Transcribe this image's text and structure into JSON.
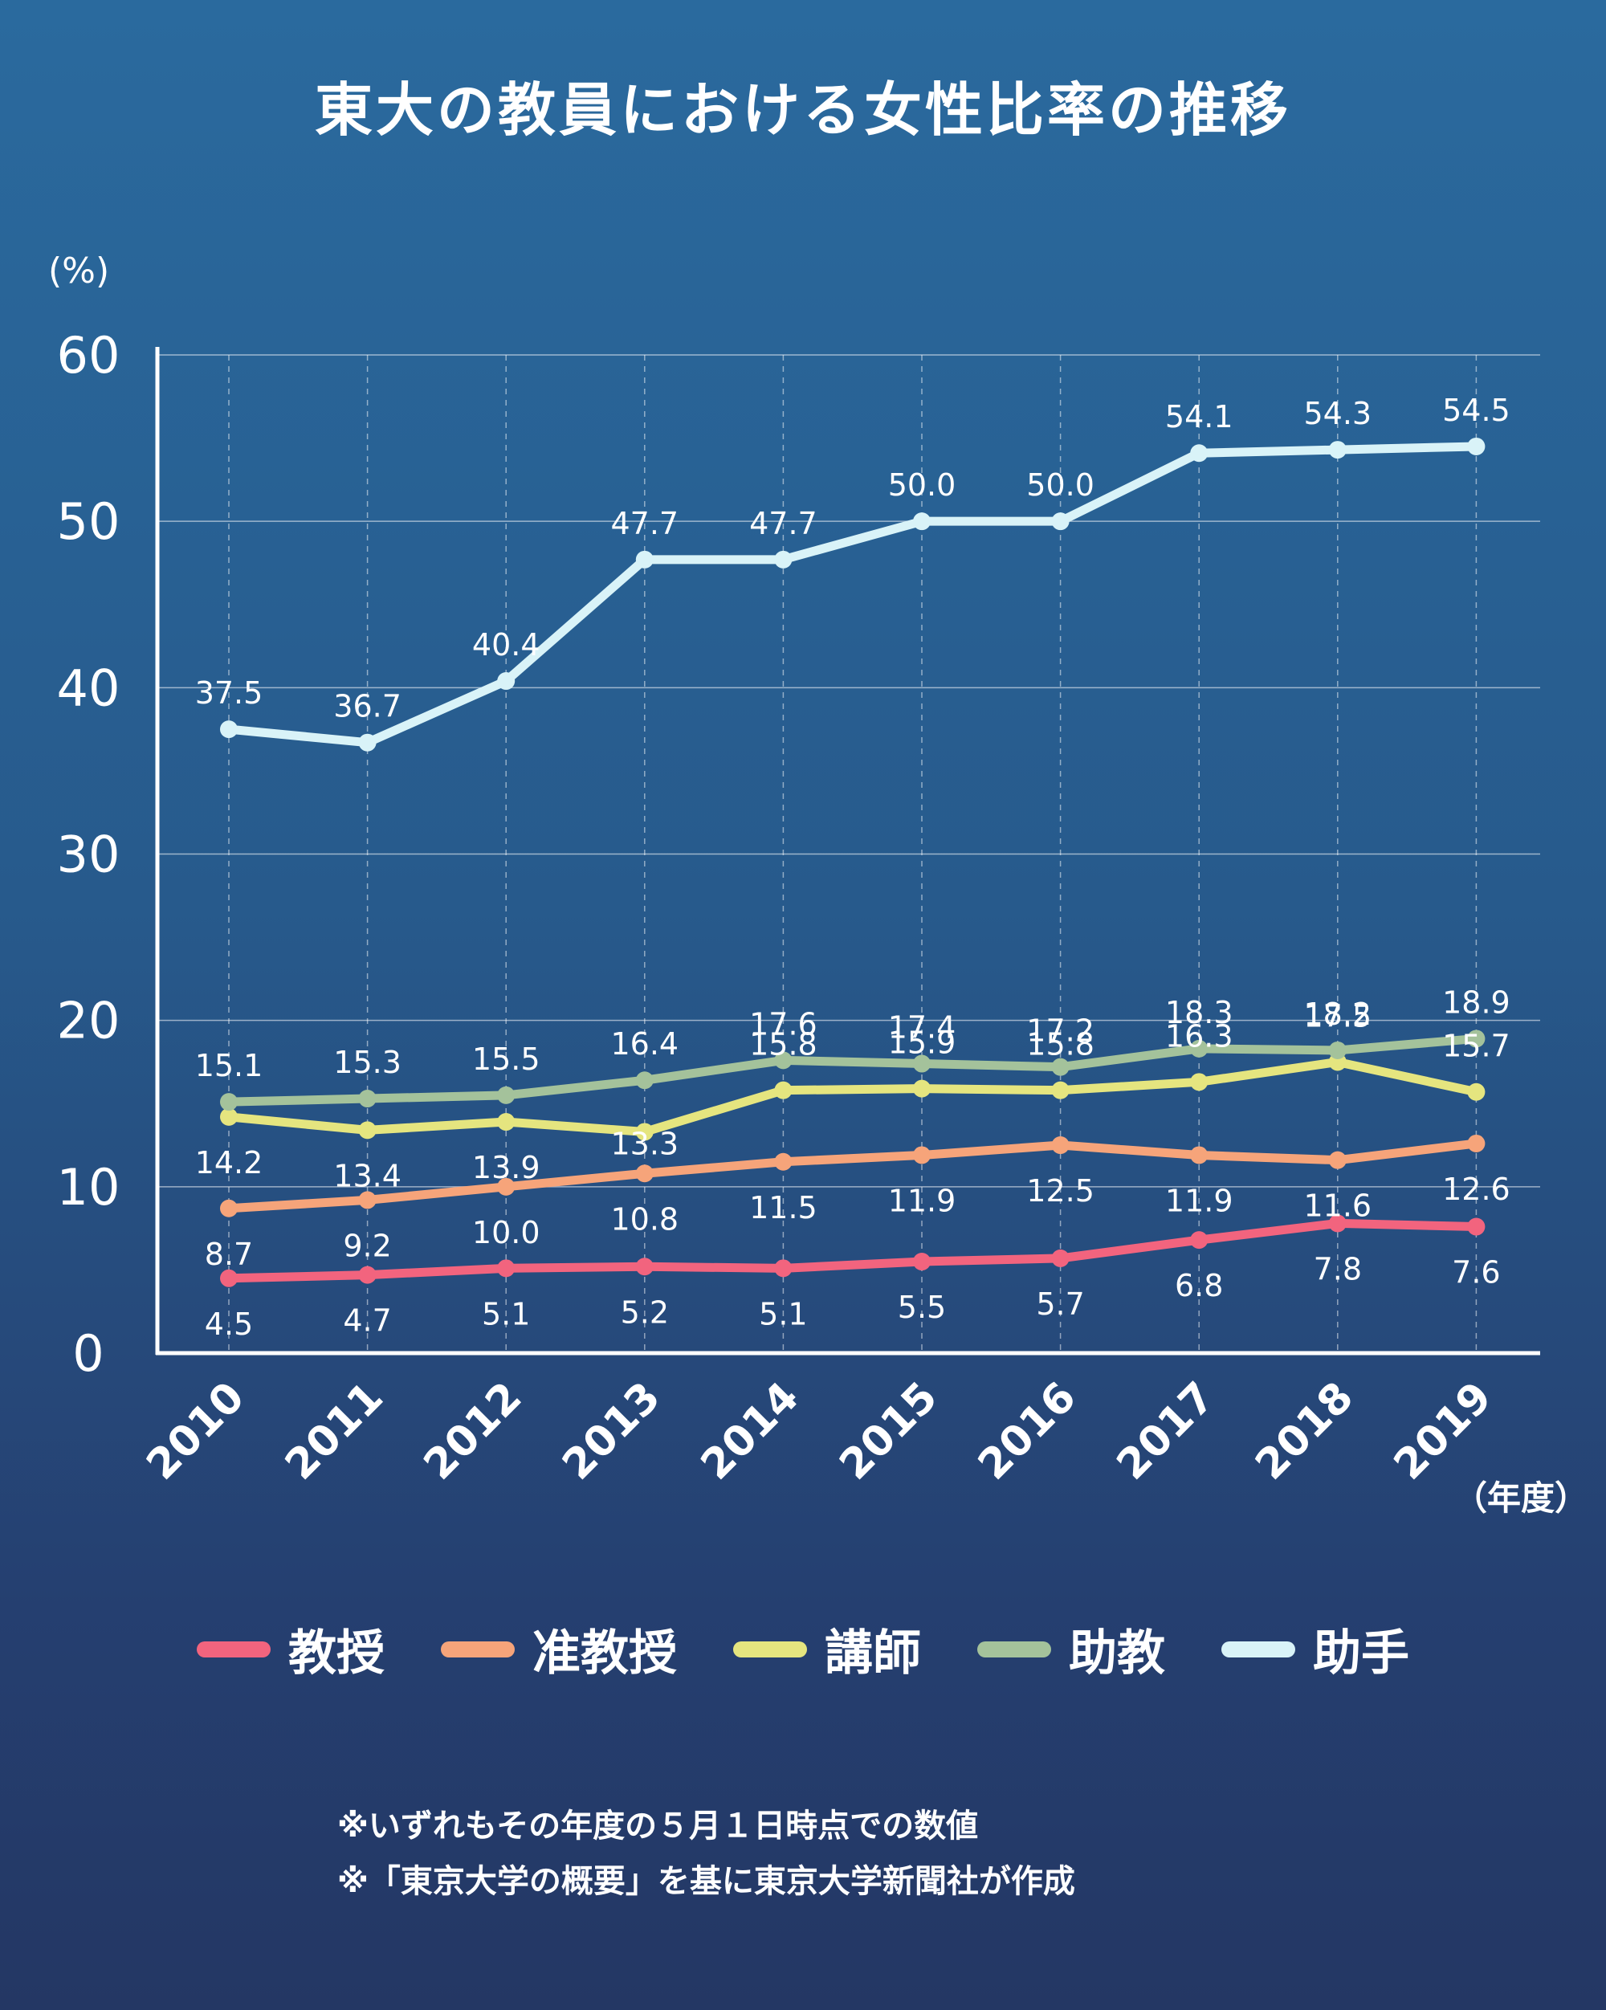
{
  "title": "東大の教員における女性比率の推移",
  "notes": [
    "※いずれもその年度の５月１日時点での数値",
    "※「東京大学の概要」を基に東京大学新聞社が作成"
  ],
  "chart_data": {
    "type": "line",
    "title": "東大の教員における女性比率の推移",
    "ylabel": "(%)",
    "xlabel": "（年度）",
    "ylim": [
      0,
      60
    ],
    "yticks": [
      "0",
      "10",
      "20",
      "30",
      "40",
      "50",
      "60"
    ],
    "grid": true,
    "legend_position": "bottom",
    "categories": [
      "2010",
      "2011",
      "2012",
      "2013",
      "2014",
      "2015",
      "2016",
      "2017",
      "2018",
      "2019"
    ],
    "series": [
      {
        "name": "教授",
        "color": "#f2647e",
        "values": [
          4.5,
          4.7,
          5.1,
          5.2,
          5.1,
          5.5,
          5.7,
          6.8,
          7.8,
          7.6
        ],
        "labels": [
          "4.5",
          "4.7",
          "5.1",
          "5.2",
          "5.1",
          "5.5",
          "5.7",
          "6.8",
          "7.8",
          "7.6"
        ]
      },
      {
        "name": "准教授",
        "color": "#f6a47a",
        "values": [
          8.7,
          9.2,
          10.0,
          10.8,
          11.5,
          11.9,
          12.5,
          11.9,
          11.6,
          12.6
        ],
        "labels": [
          "8.7",
          "9.2",
          "10.0",
          "10.8",
          "11.5",
          "11.9",
          "12.5",
          "11.9",
          "11.6",
          "12.6"
        ]
      },
      {
        "name": "講師",
        "color": "#e5e57f",
        "values": [
          14.2,
          13.4,
          13.9,
          13.3,
          15.8,
          15.9,
          15.8,
          16.3,
          17.5,
          15.7
        ],
        "labels": [
          "14.2",
          "13.4",
          "13.9",
          "13.3",
          "15.8",
          "15.9",
          "15.8",
          "16.3",
          "17.5",
          "15.7"
        ]
      },
      {
        "name": "助教",
        "color": "#a4c29b",
        "values": [
          15.1,
          15.3,
          15.5,
          16.4,
          17.6,
          17.4,
          17.2,
          18.3,
          18.2,
          18.9
        ],
        "labels": [
          "15.1",
          "15.3",
          "15.5",
          "16.4",
          "17.6",
          "17.4",
          "17.2",
          "18.3",
          "18.2",
          "18.9"
        ]
      },
      {
        "name": "助手",
        "color": "#d9f3f8",
        "values": [
          37.5,
          36.7,
          40.4,
          47.7,
          47.7,
          50.0,
          50.0,
          54.1,
          54.3,
          54.5
        ],
        "labels": [
          "37.5",
          "36.7",
          "40.4",
          "47.7",
          "47.7",
          "50.0",
          "50.0",
          "54.1",
          "54.3",
          "54.5"
        ]
      }
    ]
  }
}
